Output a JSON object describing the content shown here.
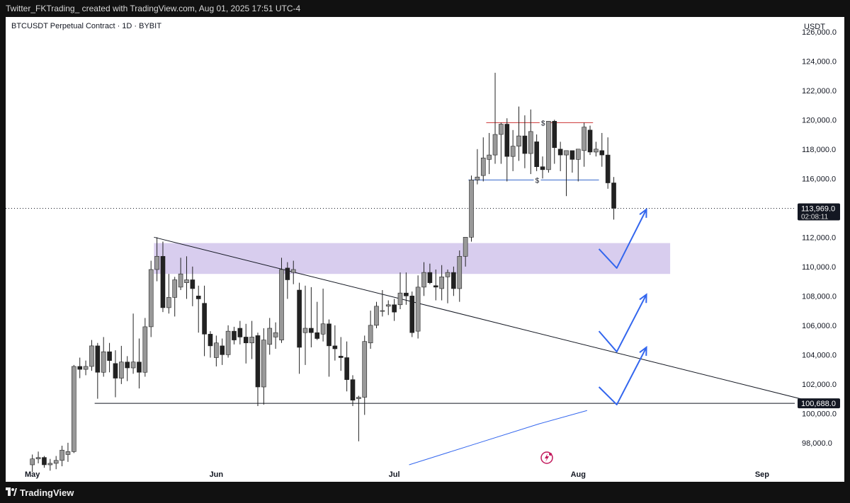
{
  "header": {
    "credit": "Twitter_FKTrading_  created with TradingView.com, Aug 01, 2025 17:51 UTC-4"
  },
  "footer": {
    "brand": "TradingView"
  },
  "chart_data": {
    "type": "candlestick",
    "title": "BTCUSDT Perpetual Contract · 1D · BYBIT",
    "currency_label": "USDT",
    "y_range": [
      96500,
      127000
    ],
    "y_ticks": [
      98000,
      100000,
      102000,
      104000,
      106000,
      108000,
      110000,
      112000,
      114000,
      116000,
      118000,
      120000,
      122000,
      124000,
      126000
    ],
    "y_tick_labels": [
      "98,000.0",
      "100,000.0",
      "102,000.0",
      "104,000.0",
      "106,000.0",
      "108,000.0",
      "110,000.0",
      "112,000.0",
      "",
      "116,000.0",
      "118,000.0",
      "120,000.0",
      "122,000.0",
      "124,000.0",
      "126,000.0"
    ],
    "x_range": [
      "2025-04-27",
      "2025-09-07"
    ],
    "x_ticks": [
      {
        "date": "2025-05-01",
        "label": "May"
      },
      {
        "date": "2025-06-01",
        "label": "Jun"
      },
      {
        "date": "2025-07-01",
        "label": "Jul"
      },
      {
        "date": "2025-08-01",
        "label": "Aug"
      },
      {
        "date": "2025-09-01",
        "label": "Sep"
      }
    ],
    "last_price": {
      "value": 113969.0,
      "label": "113,969.0",
      "countdown": "02:08:11"
    },
    "support_price": {
      "value": 100688.0,
      "label": "100,688.0"
    },
    "colors": {
      "up": "#999999",
      "down": "#222222",
      "zone": "#d8cdee",
      "projection": "#3366ee",
      "high_marker": "#cc3333",
      "low_marker": "#3366cc"
    },
    "candles": [
      [
        "2025-05-01",
        96500,
        97200,
        96000,
        96900
      ],
      [
        "2025-05-02",
        96900,
        97400,
        96600,
        97000
      ],
      [
        "2025-05-03",
        97000,
        97100,
        96300,
        96500
      ],
      [
        "2025-05-04",
        96500,
        96900,
        96100,
        96600
      ],
      [
        "2025-05-05",
        96600,
        97100,
        96200,
        96800
      ],
      [
        "2025-05-06",
        96800,
        97800,
        96400,
        97500
      ],
      [
        "2025-05-07",
        97200,
        98000,
        96700,
        97400
      ],
      [
        "2025-05-08",
        97400,
        103300,
        97300,
        103200
      ],
      [
        "2025-05-09",
        103200,
        103800,
        102400,
        103000
      ],
      [
        "2025-05-10",
        103000,
        103600,
        102600,
        103200
      ],
      [
        "2025-05-11",
        103200,
        105000,
        102900,
        104600
      ],
      [
        "2025-05-12",
        104600,
        104800,
        101000,
        102800
      ],
      [
        "2025-05-13",
        102800,
        105200,
        102500,
        104200
      ],
      [
        "2025-05-14",
        104200,
        104800,
        102800,
        103600
      ],
      [
        "2025-05-15",
        103400,
        104300,
        101100,
        102400
      ],
      [
        "2025-05-16",
        102400,
        104600,
        102000,
        103500
      ],
      [
        "2025-05-17",
        103500,
        103900,
        102200,
        103100
      ],
      [
        "2025-05-18",
        103100,
        106800,
        102700,
        103500
      ],
      [
        "2025-05-19",
        103500,
        105100,
        101700,
        102800
      ],
      [
        "2025-05-20",
        102800,
        106500,
        102500,
        105900
      ],
      [
        "2025-05-21",
        105900,
        110400,
        105200,
        109800
      ],
      [
        "2025-05-22",
        109800,
        112000,
        109000,
        110700
      ],
      [
        "2025-05-23",
        110700,
        111700,
        106900,
        107200
      ],
      [
        "2025-05-24",
        107200,
        109500,
        106800,
        107900
      ],
      [
        "2025-05-25",
        107900,
        109300,
        106600,
        109100
      ],
      [
        "2025-05-26",
        108600,
        110600,
        108400,
        109500
      ],
      [
        "2025-05-27",
        108900,
        110700,
        107800,
        109100
      ],
      [
        "2025-05-28",
        109100,
        110000,
        107300,
        108500
      ],
      [
        "2025-05-29",
        108000,
        108700,
        105500,
        107800
      ],
      [
        "2025-05-30",
        107500,
        108700,
        103900,
        105400
      ],
      [
        "2025-05-31",
        105400,
        105600,
        103800,
        104600
      ],
      [
        "2025-06-01",
        103800,
        105300,
        103200,
        104800
      ],
      [
        "2025-06-02",
        104600,
        105100,
        103300,
        104000
      ],
      [
        "2025-06-03",
        104000,
        106000,
        103800,
        105600
      ],
      [
        "2025-06-04",
        105600,
        105900,
        104700,
        105000
      ],
      [
        "2025-06-05",
        105800,
        106300,
        104700,
        105200
      ],
      [
        "2025-06-06",
        105200,
        106100,
        103400,
        104800
      ],
      [
        "2025-06-07",
        104800,
        106300,
        103700,
        105200
      ],
      [
        "2025-06-08",
        105300,
        105500,
        100500,
        101800
      ],
      [
        "2025-06-09",
        101800,
        105800,
        100600,
        105000
      ],
      [
        "2025-06-10",
        104700,
        106500,
        104000,
        105800
      ],
      [
        "2025-06-11",
        105200,
        106200,
        104400,
        105500
      ],
      [
        "2025-06-12",
        105000,
        110600,
        104800,
        109800
      ],
      [
        "2025-06-13",
        109900,
        110300,
        107800,
        109100
      ],
      [
        "2025-06-14",
        109600,
        110400,
        108800,
        109800
      ],
      [
        "2025-06-15",
        108400,
        108900,
        102700,
        104500
      ],
      [
        "2025-06-16",
        105500,
        108700,
        103300,
        105800
      ],
      [
        "2025-06-17",
        105800,
        108600,
        104500,
        105500
      ],
      [
        "2025-06-18",
        105500,
        107600,
        105000,
        105100
      ],
      [
        "2025-06-19",
        105400,
        108500,
        104900,
        106100
      ],
      [
        "2025-06-20",
        106100,
        106400,
        102500,
        104600
      ],
      [
        "2025-06-21",
        104600,
        106000,
        103600,
        104400
      ],
      [
        "2025-06-22",
        103900,
        105200,
        102900,
        103800
      ],
      [
        "2025-06-23",
        103800,
        104900,
        101500,
        102300
      ],
      [
        "2025-06-24",
        102300,
        102600,
        100500,
        100900
      ],
      [
        "2025-06-25",
        101000,
        101200,
        98100,
        101100
      ],
      [
        "2025-06-26",
        101100,
        105300,
        99900,
        104900
      ],
      [
        "2025-06-27",
        104800,
        107000,
        104400,
        106000
      ],
      [
        "2025-06-28",
        106000,
        107600,
        105800,
        107300
      ],
      [
        "2025-06-29",
        107000,
        108400,
        106600,
        107000
      ],
      [
        "2025-06-30",
        107300,
        107700,
        106700,
        107400
      ],
      [
        "2025-07-01",
        107400,
        107800,
        106300,
        106900
      ],
      [
        "2025-07-02",
        107400,
        109600,
        107100,
        108200
      ],
      [
        "2025-07-03",
        108200,
        109600,
        107400,
        108000
      ],
      [
        "2025-07-04",
        108000,
        108300,
        105200,
        105500
      ],
      [
        "2025-07-05",
        105600,
        109400,
        105100,
        108600
      ],
      [
        "2025-07-06",
        108600,
        110300,
        108000,
        109600
      ],
      [
        "2025-07-07",
        109600,
        110200,
        108800,
        108900
      ],
      [
        "2025-07-08",
        108700,
        109800,
        107700,
        108600
      ],
      [
        "2025-07-09",
        108500,
        110100,
        107700,
        109300
      ],
      [
        "2025-07-10",
        109300,
        109800,
        107500,
        109600
      ],
      [
        "2025-07-11",
        109600,
        110000,
        108000,
        108500
      ],
      [
        "2025-07-12",
        108500,
        111100,
        107600,
        110700
      ],
      [
        "2025-07-13",
        110700,
        112000,
        110000,
        112000
      ],
      [
        "2025-07-14",
        112000,
        116200,
        111700,
        115900
      ],
      [
        "2025-07-15",
        115900,
        118000,
        115600,
        116100
      ],
      [
        "2025-07-16",
        116200,
        118800,
        115800,
        117400
      ],
      [
        "2025-07-17",
        117300,
        119100,
        116300,
        117600
      ],
      [
        "2025-07-18",
        117600,
        123200,
        117000,
        119000
      ],
      [
        "2025-07-19",
        119000,
        119800,
        117000,
        119700
      ],
      [
        "2025-07-20",
        119700,
        120100,
        115800,
        117500
      ],
      [
        "2025-07-21",
        117500,
        119300,
        116500,
        118200
      ],
      [
        "2025-07-22",
        118200,
        120900,
        117200,
        118900
      ],
      [
        "2025-07-23",
        118900,
        120300,
        116700,
        117700
      ],
      [
        "2025-07-24",
        117700,
        120700,
        116300,
        119200
      ],
      [
        "2025-07-25",
        118500,
        119000,
        116500,
        116800
      ],
      [
        "2025-07-26",
        116800,
        117500,
        116000,
        116600
      ],
      [
        "2025-07-27",
        116600,
        119900,
        116400,
        119900
      ],
      [
        "2025-07-28",
        119900,
        120000,
        117000,
        118100
      ],
      [
        "2025-07-29",
        118000,
        118500,
        116500,
        117600
      ],
      [
        "2025-07-30",
        117600,
        117800,
        114800,
        117900
      ],
      [
        "2025-07-31",
        117900,
        117800,
        116400,
        117300
      ],
      [
        "2025-08-01",
        117300,
        118000,
        115800,
        118000
      ],
      [
        "2025-08-02",
        117900,
        119800,
        116800,
        119500
      ],
      [
        "2025-08-03",
        119300,
        119600,
        117600,
        117800
      ],
      [
        "2025-08-04",
        117800,
        118500,
        117500,
        118000
      ],
      [
        "2025-08-05",
        117900,
        119100,
        116800,
        117600
      ],
      [
        "2025-08-06",
        117600,
        118800,
        115300,
        115700
      ],
      [
        "2025-08-07",
        115700,
        116100,
        113200,
        113970
      ]
    ],
    "drawings": {
      "zone": {
        "from": "2025-05-22",
        "to": "2025-08-17",
        "low": 109500,
        "high": 111600
      },
      "trendline": {
        "from": [
          "2025-05-22",
          112000
        ],
        "to": [
          "2025-09-11",
          100688
        ]
      },
      "support_line": {
        "from": "2025-05-12",
        "price": 100688
      },
      "range_high": {
        "from": "2025-07-17",
        "to": "2025-08-04",
        "price": 119800,
        "label": "$"
      },
      "range_low": {
        "from": "2025-07-14",
        "to": "2025-08-05",
        "price": 115900,
        "label": "$"
      },
      "projections": [
        [
          [
            "2025-08-05",
            111200
          ],
          [
            "2025-08-08",
            109900
          ],
          [
            "2025-08-13",
            113900
          ]
        ],
        [
          [
            "2025-08-05",
            105600
          ],
          [
            "2025-08-08",
            104200
          ],
          [
            "2025-08-13",
            108100
          ]
        ],
        [
          [
            "2025-08-05",
            101800
          ],
          [
            "2025-08-08",
            100600
          ],
          [
            "2025-08-13",
            104500
          ]
        ]
      ],
      "projection_arrows": [
        [
          [
            "2025-08-08",
            109900
          ],
          [
            "2025-08-13",
            113900
          ]
        ],
        [
          [
            "2025-08-08",
            104200
          ],
          [
            "2025-08-13",
            108100
          ]
        ],
        [
          [
            "2025-08-08",
            100600
          ],
          [
            "2025-08-13",
            104500
          ]
        ]
      ],
      "curve": [
        [
          "2025-07-04",
          96500
        ],
        [
          "2025-07-15",
          97900
        ],
        [
          "2025-07-26",
          99300
        ],
        [
          "2025-08-03",
          100200
        ]
      ]
    }
  }
}
